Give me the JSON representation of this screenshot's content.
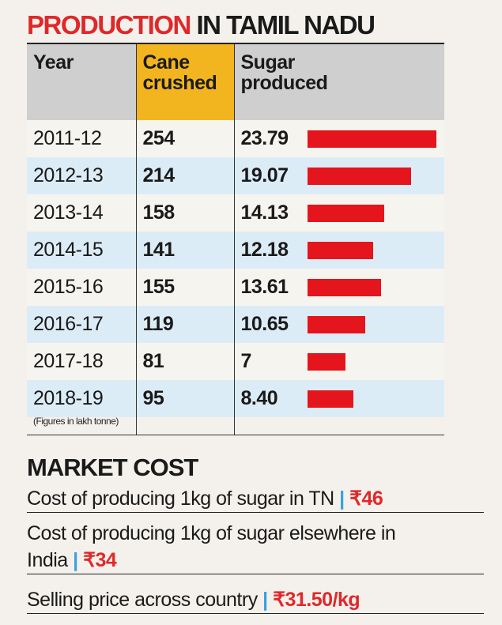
{
  "title": {
    "part1": "PRODUCTION",
    "part2": "IN TAMIL NADU"
  },
  "table": {
    "headers": {
      "year": "Year",
      "cane_line1": "Cane",
      "cane_line2": "crushed",
      "sugar_line1": "Sugar",
      "sugar_line2": "produced"
    },
    "footnote": "(Figures in lakh tonne)"
  },
  "chart_data": {
    "type": "table",
    "title": "PRODUCTION IN TAMIL NADU",
    "columns": [
      "Year",
      "Cane crushed",
      "Sugar produced"
    ],
    "unit": "(Figures in lakh tonne)",
    "rows": [
      {
        "year": "2011-12",
        "cane": "254",
        "sugar": "23.79",
        "sugar_value": 23.79
      },
      {
        "year": "2012-13",
        "cane": "214",
        "sugar": "19.07",
        "sugar_value": 19.07
      },
      {
        "year": "2013-14",
        "cane": "158",
        "sugar": "14.13",
        "sugar_value": 14.13
      },
      {
        "year": "2014-15",
        "cane": "141",
        "sugar": "12.18",
        "sugar_value": 12.18
      },
      {
        "year": "2015-16",
        "cane": "155",
        "sugar": "13.61",
        "sugar_value": 13.61
      },
      {
        "year": "2016-17",
        "cane": "119",
        "sugar": "10.65",
        "sugar_value": 10.65
      },
      {
        "year": "2017-18",
        "cane": "81",
        "sugar": "7",
        "sugar_value": 7
      },
      {
        "year": "2018-19",
        "cane": "95",
        "sugar": "8.40",
        "sugar_value": 8.4
      }
    ],
    "bar_color": "#e4151c",
    "header_highlight_color": "#f2b51f",
    "row_alt_color": "#dcecf7"
  },
  "market_cost": {
    "title": "MARKET COST",
    "items": [
      {
        "text_line1": "Cost of producing 1kg of sugar in TN",
        "text_line2": "",
        "price": "₹46"
      },
      {
        "text_line1": "Cost of producing 1kg of sugar elsewhere in",
        "text_line2": "India",
        "price": "₹34"
      },
      {
        "text_line1": "Selling price across country",
        "text_line2": "",
        "price": "₹31.50/kg"
      }
    ],
    "separator": "|",
    "accent_color": "#e0282a",
    "separator_color": "#3aa0e0"
  }
}
